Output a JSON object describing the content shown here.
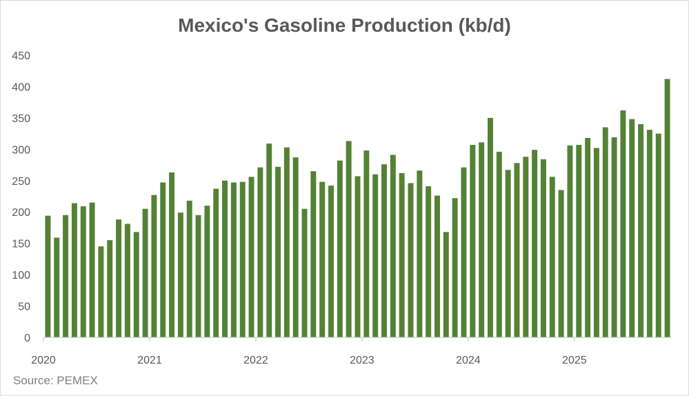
{
  "chart_data": {
    "type": "bar",
    "title": "Mexico's Gasoline Production (kb/d)",
    "source": "Source: PEMEX",
    "ylim": [
      0,
      450
    ],
    "yticks": [
      0,
      50,
      100,
      150,
      200,
      250,
      300,
      350,
      400,
      450
    ],
    "grid": false,
    "bar_color": "#548235",
    "x_year_labels": [
      "2020",
      "2021",
      "2022",
      "2023",
      "2024",
      "2025"
    ],
    "x": [
      "2020-01",
      "2020-02",
      "2020-03",
      "2020-04",
      "2020-05",
      "2020-06",
      "2020-07",
      "2020-08",
      "2020-09",
      "2020-10",
      "2020-11",
      "2020-12",
      "2021-01",
      "2021-02",
      "2021-03",
      "2021-04",
      "2021-05",
      "2021-06",
      "2021-07",
      "2021-08",
      "2021-09",
      "2021-10",
      "2021-11",
      "2021-12",
      "2022-01",
      "2022-02",
      "2022-03",
      "2022-04",
      "2022-05",
      "2022-06",
      "2022-07",
      "2022-08",
      "2022-09",
      "2022-10",
      "2022-11",
      "2022-12",
      "2023-01",
      "2023-02",
      "2023-03",
      "2023-04",
      "2023-05",
      "2023-06",
      "2023-07",
      "2023-08",
      "2023-09",
      "2023-10",
      "2023-11",
      "2023-12",
      "2024-01",
      "2024-02",
      "2024-03",
      "2024-04",
      "2024-05",
      "2024-06",
      "2024-07",
      "2024-08",
      "2024-09",
      "2024-10",
      "2024-11",
      "2024-12",
      "2025-01",
      "2025-02",
      "2025-03",
      "2025-04",
      "2025-05",
      "2025-06",
      "2025-07",
      "2025-08",
      "2025-09",
      "2025-10",
      "2025-11"
    ],
    "values": [
      194,
      159,
      195,
      214,
      209,
      215,
      145,
      155,
      188,
      181,
      168,
      205,
      227,
      247,
      263,
      199,
      218,
      195,
      210,
      237,
      250,
      247,
      248,
      256,
      271,
      309,
      272,
      303,
      287,
      205,
      265,
      248,
      242,
      282,
      313,
      257,
      298,
      260,
      276,
      291,
      262,
      246,
      266,
      241,
      226,
      168,
      222,
      271,
      307,
      311,
      350,
      296,
      267,
      278,
      288,
      299,
      284,
      256,
      235,
      306,
      307,
      318,
      302,
      335,
      319,
      362,
      348,
      340,
      331,
      325,
      412
    ]
  }
}
